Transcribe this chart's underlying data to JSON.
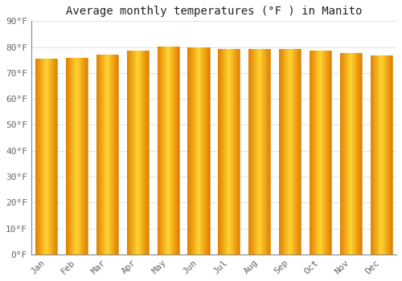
{
  "title": "Average monthly temperatures (°F ) in Manito",
  "months": [
    "Jan",
    "Feb",
    "Mar",
    "Apr",
    "May",
    "Jun",
    "Jul",
    "Aug",
    "Sep",
    "Oct",
    "Nov",
    "Dec"
  ],
  "values": [
    75.5,
    75.7,
    77.0,
    78.7,
    80.2,
    80.0,
    79.3,
    79.3,
    79.3,
    78.7,
    77.6,
    76.7
  ],
  "bar_color_center": "#FFD050",
  "bar_color_edge": "#E08000",
  "bar_color_mid": "#FFAA00",
  "background_color": "#FFFFFF",
  "plot_bg_color": "#FFFFFF",
  "grid_color": "#DDDDDD",
  "spine_color": "#888888",
  "tick_color": "#666666",
  "ylim": [
    0,
    90
  ],
  "ytick_step": 10,
  "title_fontsize": 10,
  "tick_fontsize": 8,
  "font_family": "monospace",
  "bar_width": 0.72
}
